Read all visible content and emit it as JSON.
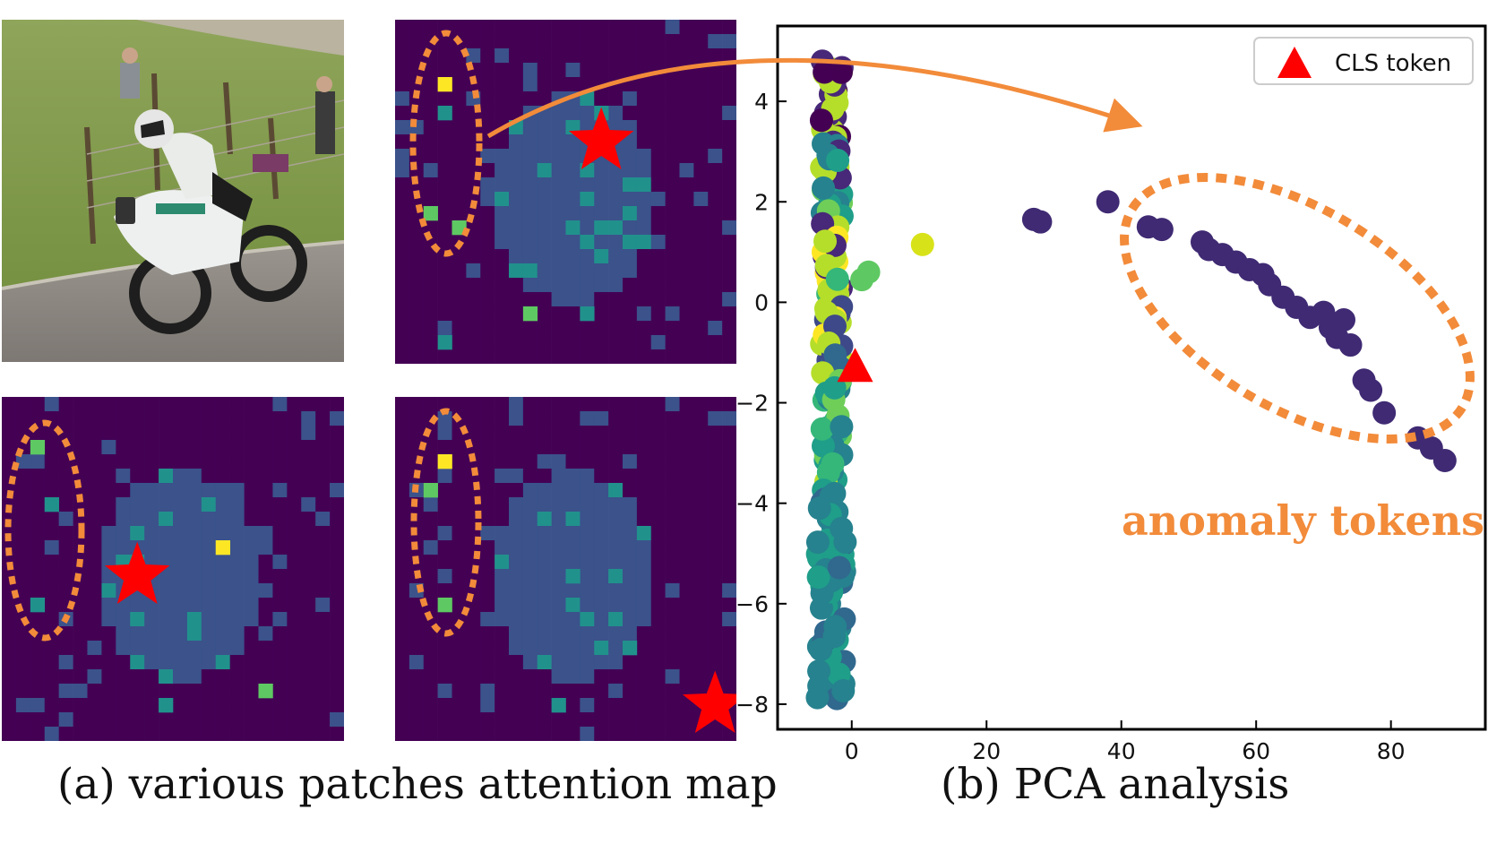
{
  "figure": {
    "caption_a": "(a) various patches attention map",
    "caption_b": "(b) PCA analysis"
  },
  "attention_maps": {
    "grid_size": 24,
    "colormap": [
      "#440154",
      "#3b528b",
      "#21918c",
      "#5ec962",
      "#fde725"
    ],
    "star_color": "#ff0000",
    "ellipse_color": "#f28b3a",
    "maps": [
      {
        "id": "top-right",
        "star_cell": [
          14,
          8
        ]
      },
      {
        "id": "bottom-left",
        "star_cell": [
          9,
          12
        ]
      },
      {
        "id": "bottom-right",
        "star_cell": [
          22,
          21
        ]
      }
    ]
  },
  "annotation": {
    "label": "anomaly tokens",
    "color": "#f28b3a"
  },
  "chart_data": {
    "type": "scatter",
    "title": "",
    "xlabel": "",
    "ylabel": "",
    "xlim": [
      -11,
      94
    ],
    "ylim": [
      -8.5,
      5.5
    ],
    "x_ticks": [
      0,
      20,
      40,
      60,
      80
    ],
    "y_ticks": [
      4,
      2,
      0,
      -2,
      -4,
      -6,
      -8
    ],
    "x_tick_labels": [
      "0",
      "20",
      "40",
      "60",
      "80"
    ],
    "y_tick_labels": [
      "4",
      "2",
      "0",
      "−2",
      "−4",
      "−6",
      "−8"
    ],
    "legend": {
      "label": "CLS token",
      "placement": "top-right"
    },
    "cls_token": {
      "x": 0.5,
      "y": -1.3,
      "color": "#ff0000"
    },
    "anomaly_points": [
      {
        "x": 27,
        "y": 1.65
      },
      {
        "x": 28,
        "y": 1.6
      },
      {
        "x": 38,
        "y": 2.0
      },
      {
        "x": 44,
        "y": 1.5
      },
      {
        "x": 46,
        "y": 1.45
      },
      {
        "x": 52,
        "y": 1.2
      },
      {
        "x": 53,
        "y": 1.05
      },
      {
        "x": 55,
        "y": 0.95
      },
      {
        "x": 57,
        "y": 0.8
      },
      {
        "x": 59,
        "y": 0.65
      },
      {
        "x": 61,
        "y": 0.55
      },
      {
        "x": 62,
        "y": 0.35
      },
      {
        "x": 64,
        "y": 0.1
      },
      {
        "x": 66,
        "y": -0.1
      },
      {
        "x": 68,
        "y": -0.3
      },
      {
        "x": 70,
        "y": -0.2
      },
      {
        "x": 71,
        "y": -0.5
      },
      {
        "x": 72,
        "y": -0.7
      },
      {
        "x": 73,
        "y": -0.35
      },
      {
        "x": 74,
        "y": -0.85
      },
      {
        "x": 76,
        "y": -1.55
      },
      {
        "x": 77,
        "y": -1.75
      },
      {
        "x": 79,
        "y": -2.2
      },
      {
        "x": 84,
        "y": -2.7
      },
      {
        "x": 86,
        "y": -2.9
      },
      {
        "x": 88,
        "y": -3.15
      }
    ],
    "outlier_points": [
      {
        "x": 10.5,
        "y": 1.15,
        "color": "#d8e219"
      },
      {
        "x": 2.5,
        "y": 0.6,
        "color": "#5ec962"
      },
      {
        "x": 1.5,
        "y": 0.45,
        "color": "#5ec962"
      }
    ],
    "colors": {
      "anomaly": "#3f2a73",
      "cluster": [
        "#440154",
        "#482878",
        "#3e4989",
        "#31688e",
        "#26828e",
        "#1f9e89",
        "#35b779",
        "#6ece58",
        "#b5de2b",
        "#fde725"
      ]
    }
  }
}
